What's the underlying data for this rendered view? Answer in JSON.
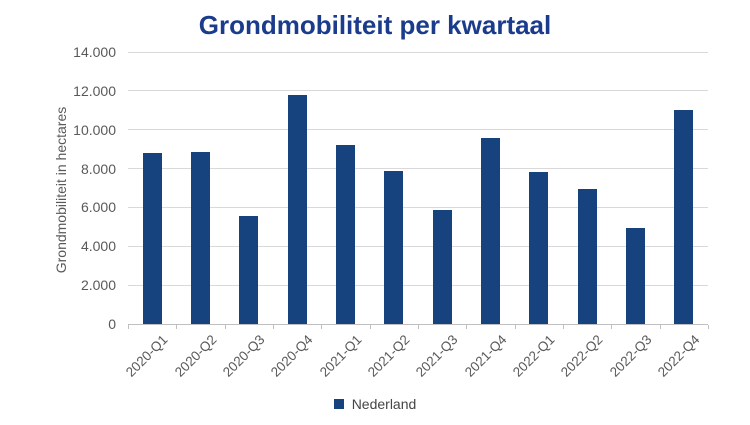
{
  "chart_data": {
    "type": "bar",
    "title": "Grondmobiliteit per kwartaal",
    "xlabel": "",
    "ylabel": "Grondmobiliteit in hectares",
    "categories": [
      "2020-Q1",
      "2020-Q2",
      "2020-Q3",
      "2020-Q4",
      "2021-Q1",
      "2021-Q2",
      "2021-Q3",
      "2021-Q4",
      "2022-Q1",
      "2022-Q2",
      "2022-Q3",
      "2022-Q4"
    ],
    "series": [
      {
        "name": "Nederland",
        "values": [
          8800,
          8850,
          5550,
          11800,
          9200,
          7900,
          5850,
          9600,
          7800,
          6950,
          4950,
          11000
        ]
      }
    ],
    "ylim": [
      0,
      14000
    ],
    "ytick_values": [
      0,
      2000,
      4000,
      6000,
      8000,
      10000,
      12000,
      14000
    ],
    "ytick_labels": [
      "0",
      "2.000",
      "4.000",
      "6.000",
      "8.000",
      "10.000",
      "12.000",
      "14.000"
    ],
    "grid": true,
    "legend_position": "bottom",
    "colors": {
      "bar": "#16427E",
      "title": "#1B3C8C",
      "gridline": "#D9D9D9",
      "axis_line": "#BFBFBF",
      "tick_label": "#595959",
      "legend_text": "#454545"
    }
  }
}
